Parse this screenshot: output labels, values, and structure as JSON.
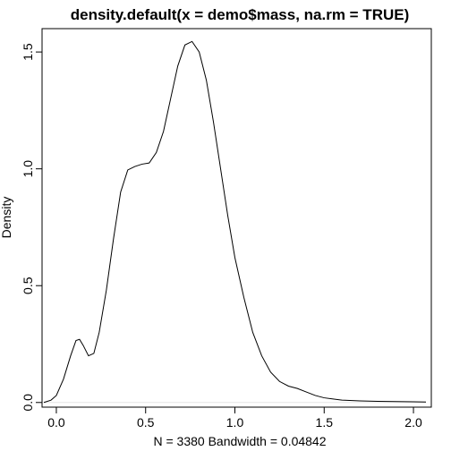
{
  "chart_data": {
    "type": "line",
    "title": "density.default(x = demo$mass, na.rm = TRUE)",
    "xlabel": "N = 3380   Bandwidth = 0.04842",
    "ylabel": "Density",
    "xlim": [
      -0.08,
      2.1
    ],
    "ylim": [
      -0.02,
      1.6
    ],
    "x_ticks": [
      0.0,
      0.5,
      1.0,
      1.5,
      2.0
    ],
    "x_tick_labels": [
      "0.0",
      "0.5",
      "1.0",
      "1.5",
      "2.0"
    ],
    "y_ticks": [
      0.0,
      0.5,
      1.0,
      1.5
    ],
    "y_tick_labels": [
      "0.0",
      "0.5",
      "1.0",
      "1.5"
    ],
    "grid": false,
    "baseline": 0,
    "series": [
      {
        "color": "#000000",
        "x": [
          -0.07,
          -0.03,
          0.0,
          0.04,
          0.08,
          0.11,
          0.13,
          0.15,
          0.18,
          0.21,
          0.24,
          0.28,
          0.32,
          0.36,
          0.4,
          0.44,
          0.48,
          0.52,
          0.56,
          0.6,
          0.64,
          0.68,
          0.72,
          0.76,
          0.8,
          0.84,
          0.88,
          0.92,
          0.96,
          1.0,
          1.05,
          1.1,
          1.15,
          1.2,
          1.25,
          1.3,
          1.35,
          1.4,
          1.45,
          1.5,
          1.55,
          1.6,
          1.7,
          1.8,
          1.9,
          2.0,
          2.07
        ],
        "y": [
          0.0,
          0.01,
          0.03,
          0.1,
          0.2,
          0.265,
          0.27,
          0.245,
          0.2,
          0.21,
          0.3,
          0.48,
          0.7,
          0.9,
          0.995,
          1.01,
          1.02,
          1.025,
          1.07,
          1.16,
          1.3,
          1.44,
          1.53,
          1.545,
          1.5,
          1.38,
          1.2,
          1.0,
          0.8,
          0.62,
          0.45,
          0.3,
          0.2,
          0.13,
          0.09,
          0.07,
          0.06,
          0.045,
          0.03,
          0.02,
          0.015,
          0.01,
          0.007,
          0.005,
          0.004,
          0.003,
          0.002
        ]
      }
    ]
  }
}
